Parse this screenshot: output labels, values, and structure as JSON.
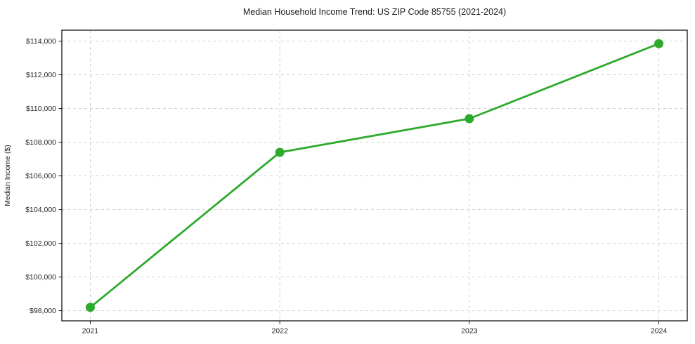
{
  "chart_data": {
    "type": "line",
    "title": "Median Household Income Trend: US ZIP Code 85755 (2021-2024)",
    "xlabel": "",
    "ylabel": "Median Income ($)",
    "categories": [
      "2021",
      "2022",
      "2023",
      "2024"
    ],
    "values": [
      98200,
      107400,
      109400,
      113850
    ],
    "y_ticks": {
      "values": [
        98000,
        100000,
        102000,
        104000,
        106000,
        108000,
        110000,
        112000,
        114000
      ],
      "labels": [
        "$98,000",
        "$100,000",
        "$102,000",
        "$104,000",
        "$106,000",
        "$108,000",
        "$110,000",
        "$112,000",
        "$114,000"
      ]
    },
    "ylim": [
      97400,
      114650
    ],
    "grid": true,
    "grid_style": "dashed",
    "legend": false,
    "colors": {
      "line": "#2daa2d",
      "marker": "#2daa2d",
      "grid": "#cccccc",
      "axis_box": "#000000",
      "tick_text": "#262626",
      "background": "#ffffff"
    }
  }
}
